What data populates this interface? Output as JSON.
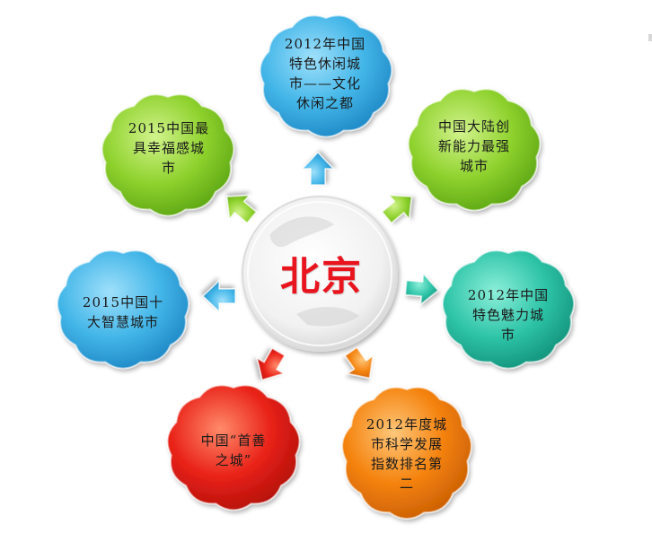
{
  "center": {
    "label": "北京"
  },
  "colors": {
    "sky": "#43b6e8",
    "lime": "#8fd22e",
    "teal": "#2ec4a8",
    "red": "#e92218",
    "orange": "#f4820d",
    "center_fill": "#f2f2f2"
  },
  "nodes": [
    {
      "id": "top",
      "color": "sky",
      "lines": [
        "2012年中国",
        "特色休闲城",
        "市——文化",
        "休闲之都"
      ]
    },
    {
      "id": "top-right",
      "color": "lime",
      "lines": [
        "中国大陆创",
        "新能力最强",
        "城市"
      ]
    },
    {
      "id": "right",
      "color": "teal",
      "lines": [
        "2012年中国",
        "特色魅力城",
        "市"
      ]
    },
    {
      "id": "bottom-right",
      "color": "orange",
      "lines": [
        "2012年度城",
        "市科学发展",
        "指数排名第",
        "二"
      ]
    },
    {
      "id": "bottom-left",
      "color": "red",
      "lines": [
        "中国“首善",
        "之城”"
      ]
    },
    {
      "id": "left",
      "color": "sky",
      "lines": [
        "2015中国十",
        "大智慧城市"
      ]
    },
    {
      "id": "top-left",
      "color": "lime",
      "lines": [
        "2015中国最",
        "具幸福感城",
        "市"
      ]
    }
  ]
}
